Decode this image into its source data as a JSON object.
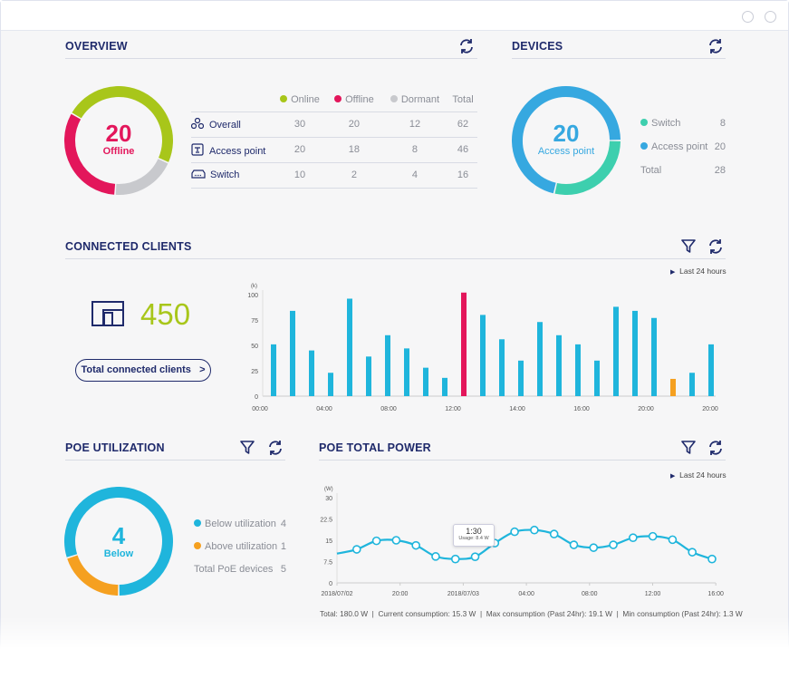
{
  "overview": {
    "title": "OVERVIEW",
    "center_value": "20",
    "center_label": "Offline",
    "legend": [
      {
        "label": "Online",
        "color": "#a8c61a"
      },
      {
        "label": "Offline",
        "color": "#e3165b"
      },
      {
        "label": "Dormant",
        "color": "#c8c9cd"
      }
    ],
    "total_header": "Total",
    "rows": [
      {
        "label": "Overall",
        "icon": "nodes-icon",
        "online": "30",
        "offline": "20",
        "dormant": "12",
        "total": "62"
      },
      {
        "label": "Access point",
        "icon": "access-point-icon",
        "online": "20",
        "offline": "18",
        "dormant": "8",
        "total": "46"
      },
      {
        "label": "Switch",
        "icon": "switch-icon",
        "online": "10",
        "offline": "2",
        "dormant": "4",
        "total": "16"
      }
    ]
  },
  "devices": {
    "title": "DEVICES",
    "center_value": "20",
    "center_label": "Access point",
    "items": [
      {
        "label": "Switch",
        "value": "8",
        "color": "#3dcfae"
      },
      {
        "label": "Access point",
        "value": "20",
        "color": "#36a8e0"
      }
    ],
    "total_label": "Total",
    "total_value": "28"
  },
  "clients": {
    "title": "CONNECTED CLIENTS",
    "count": "450",
    "button": "Total connected clients",
    "range": "Last 24 hours"
  },
  "poe_util": {
    "title": "POE UTILIZATION",
    "center_value": "4",
    "center_label": "Below",
    "items": [
      {
        "label": "Below utilization",
        "value": "4",
        "color": "#1fb5dc"
      },
      {
        "label": "Above utilization",
        "value": "1",
        "color": "#f5a020"
      }
    ],
    "total_label": "Total PoE devices",
    "total_value": "5"
  },
  "poe_power": {
    "title": "POE TOTAL POWER",
    "range": "Last 24 hours",
    "tooltip_time": "1:30",
    "tooltip_value": "Usage: 8.4 W",
    "stats": [
      "Total: 180.0 W",
      "Current consumption: 15.3 W",
      "Max consumption (Past 24hr): 19.1 W",
      "Min consumption (Past 24hr): 1.3 W"
    ]
  },
  "chart_data": [
    {
      "type": "bar",
      "ylabel": "(k)",
      "ylim": [
        0,
        100
      ],
      "yticks": [
        "0",
        "25",
        "50",
        "75",
        "100"
      ],
      "xticks": [
        "00:00",
        "04:00",
        "08:00",
        "12:00",
        "14:00",
        "16:00",
        "20:00",
        "20:00"
      ],
      "values": [
        51,
        84,
        45,
        23,
        96,
        39,
        60,
        47,
        28,
        18,
        102,
        80,
        56,
        35,
        73,
        60,
        51,
        35,
        88,
        84,
        77,
        17,
        23,
        51
      ],
      "highlight": {
        "10": "#e3165b",
        "21": "#f5a020"
      },
      "color": "#1fb5dc"
    },
    {
      "type": "line",
      "ylabel": "(W)",
      "ylim": [
        0,
        30
      ],
      "yticks": [
        "0",
        "7.5",
        "15",
        "22.5",
        "30"
      ],
      "xticks": [
        "2018/07/02",
        "20:00",
        "2018/07/03",
        "04:00",
        "08:00",
        "12:00",
        "16:00"
      ],
      "values": [
        10.3,
        11.8,
        14.8,
        15,
        13.2,
        9.3,
        8.4,
        9.2,
        14,
        18,
        18.6,
        17.2,
        13.4,
        12.4,
        13.4,
        15.9,
        16.4,
        15.2,
        10.8,
        8.4
      ],
      "color": "#1fb5dc"
    }
  ]
}
